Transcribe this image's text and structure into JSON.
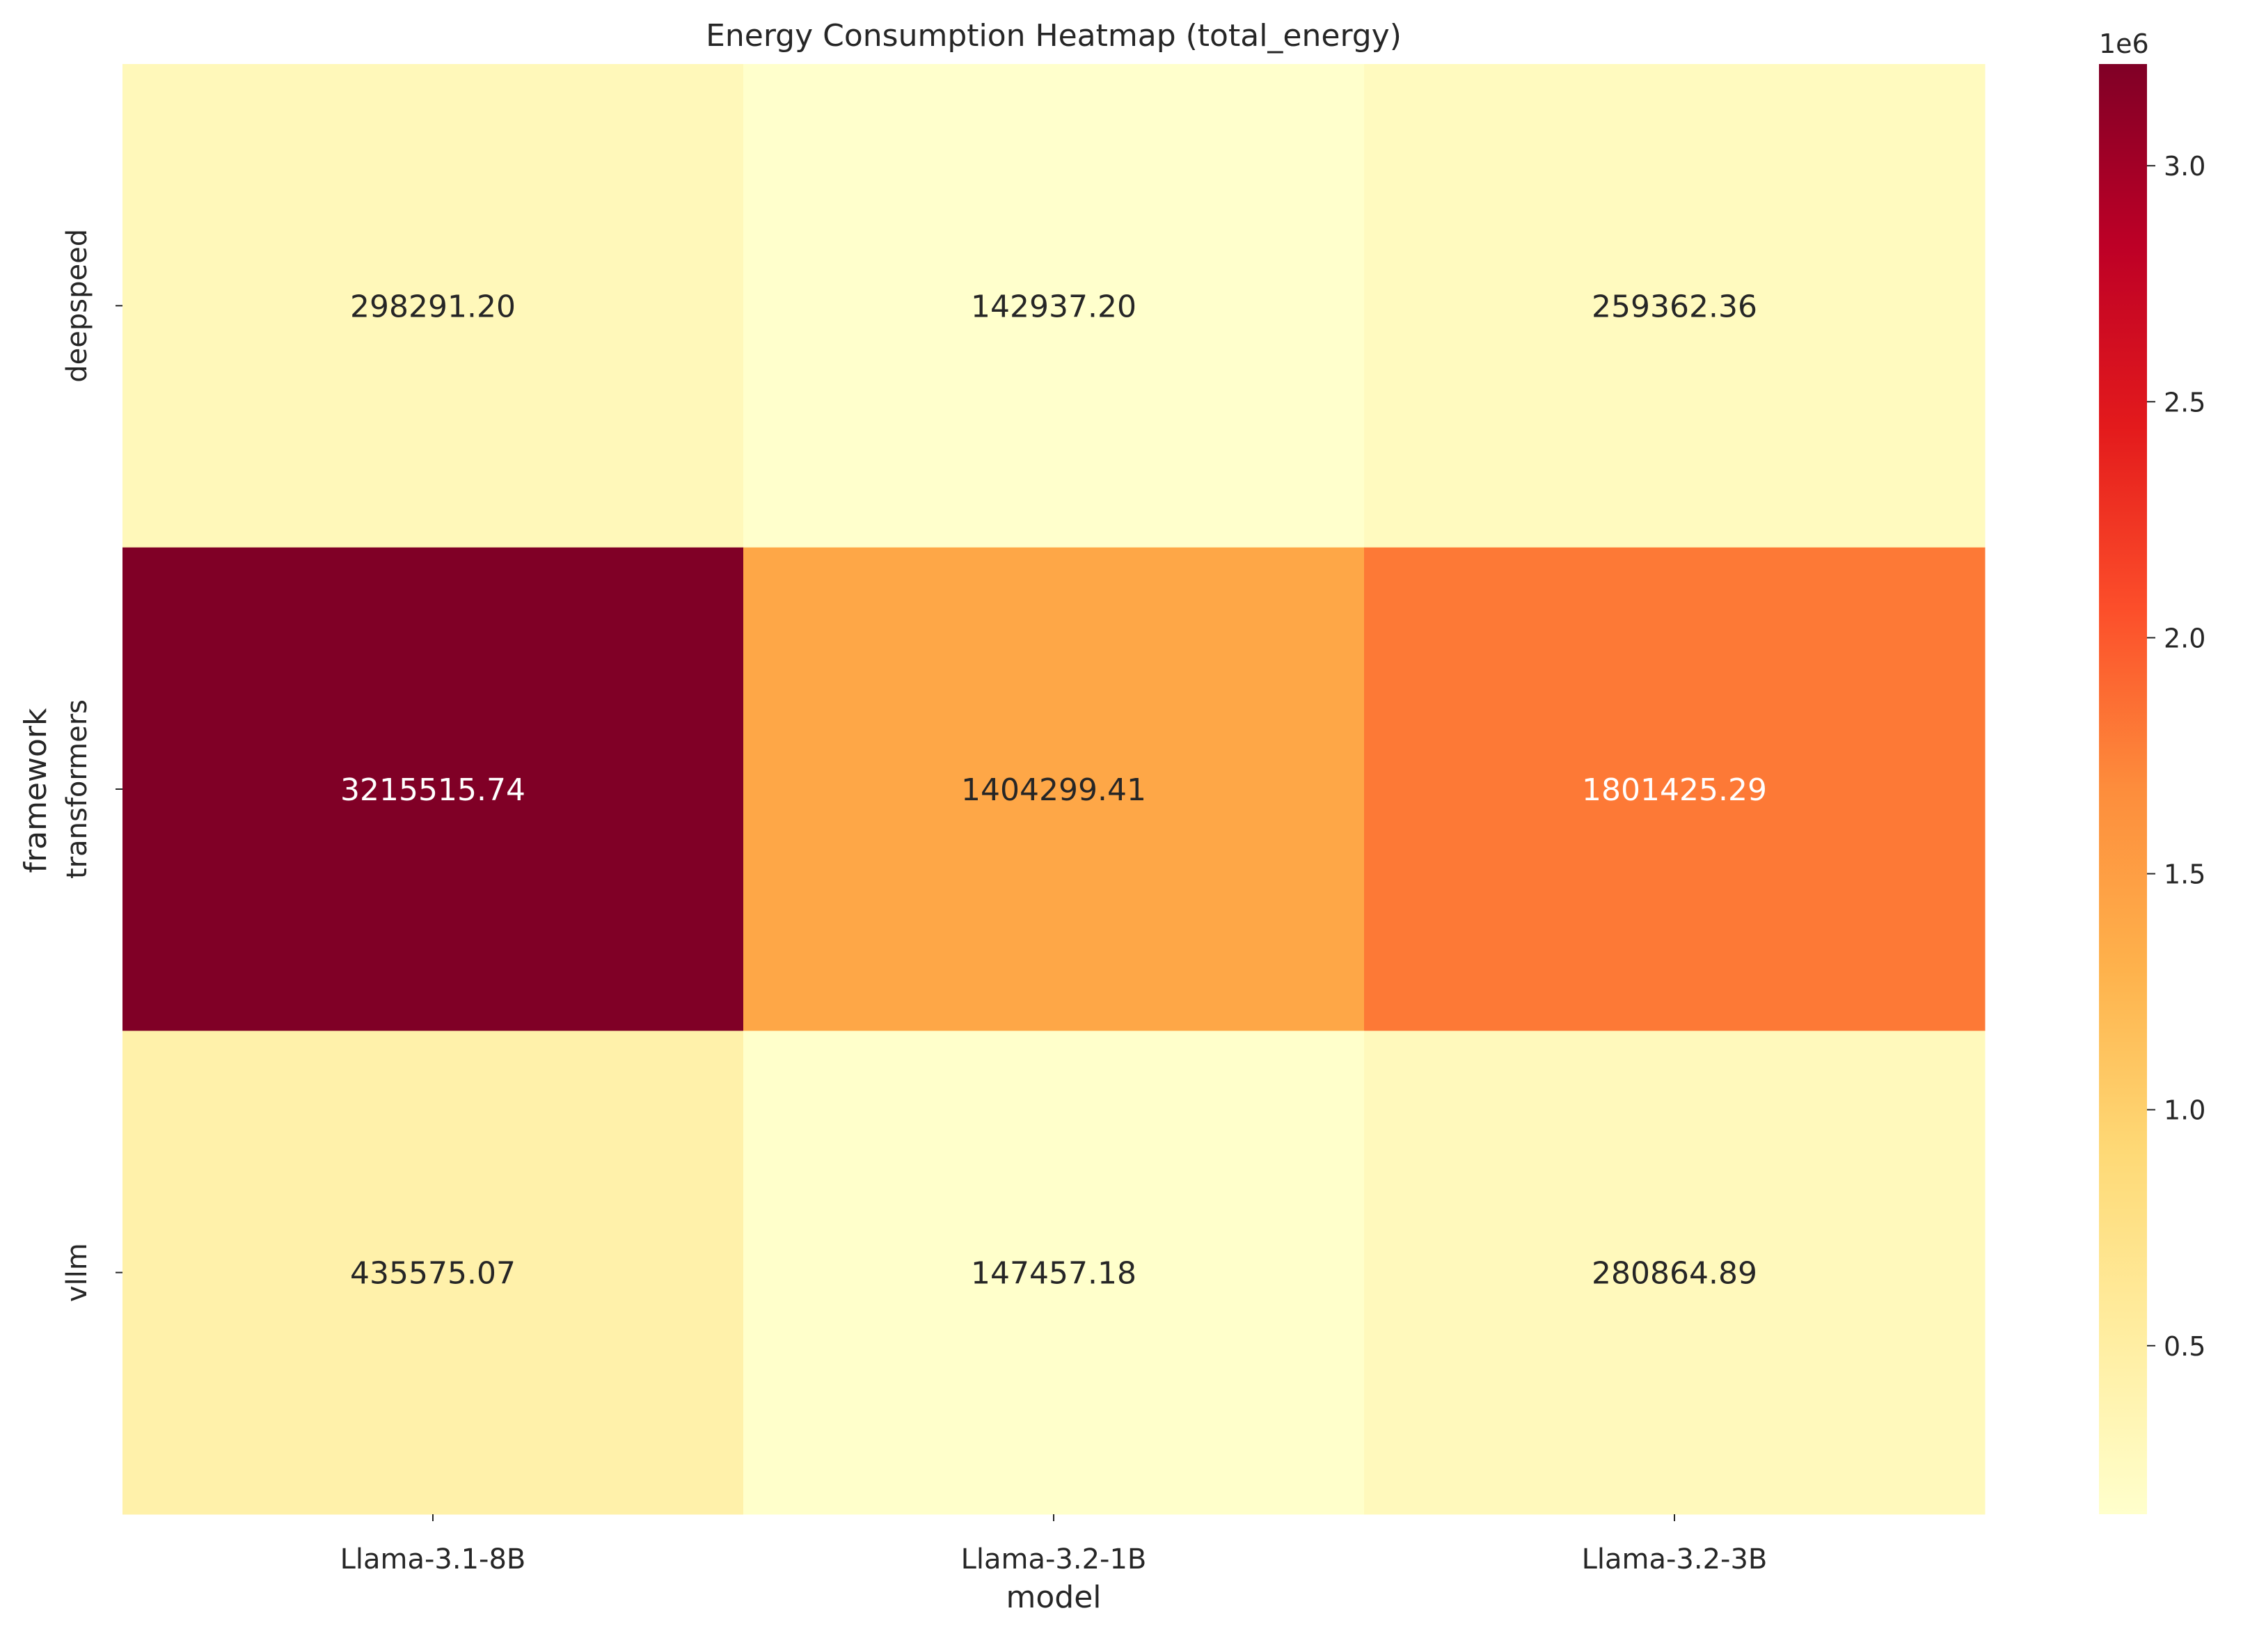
{
  "chart_data": {
    "type": "heatmap",
    "title": "Energy Consumption Heatmap (total_energy)",
    "xlabel": "model",
    "ylabel": "framework",
    "x_categories": [
      "Llama-3.1-8B",
      "Llama-3.2-1B",
      "Llama-3.2-3B"
    ],
    "y_categories": [
      "deepspeed",
      "transformers",
      "vllm"
    ],
    "values": [
      [
        298291.2,
        142937.2,
        259362.36
      ],
      [
        3215515.74,
        1404299.41,
        1801425.29
      ],
      [
        435575.07,
        147457.18,
        280864.89
      ]
    ],
    "value_labels": [
      [
        "298291.20",
        "142937.20",
        "259362.36"
      ],
      [
        "3215515.74",
        "1404299.41",
        "1801425.29"
      ],
      [
        "435575.07",
        "147457.18",
        "280864.89"
      ]
    ],
    "colormap": "YlOrRd",
    "colorbar": {
      "vmin": 142937.2,
      "vmax": 3215515.74,
      "ticks": [
        500000,
        1000000,
        1500000,
        2000000,
        2500000,
        3000000
      ],
      "tick_labels": [
        "0.5",
        "1.0",
        "1.5",
        "2.0",
        "2.5",
        "3.0"
      ],
      "offset_label": "1e6"
    },
    "colors": [
      "#ffffcc",
      "#ffeda0",
      "#fed976",
      "#feb24c",
      "#fd8d3c",
      "#fc4e2a",
      "#e31a1c",
      "#bd0026",
      "#800026"
    ],
    "grid": false
  }
}
